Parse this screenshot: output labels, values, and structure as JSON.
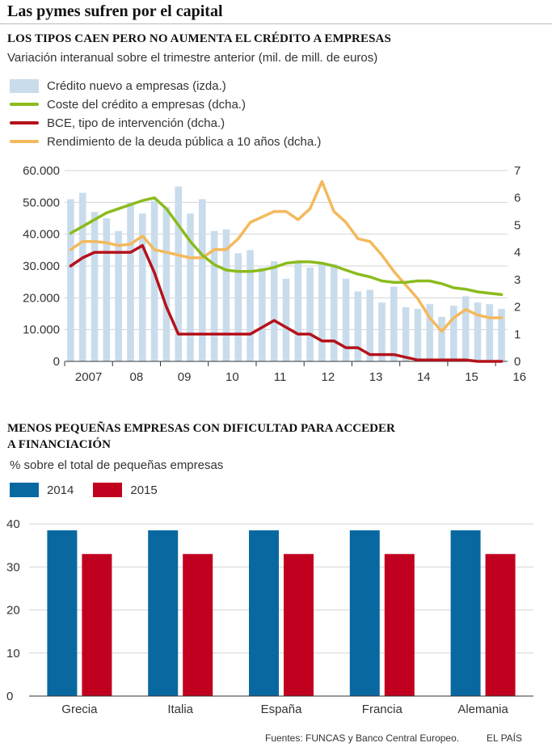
{
  "page_title": "Las pymes sufren por el capital",
  "colors": {
    "credit_bar": "#c9dcec",
    "cost_line": "#8cbb1d",
    "ecb_line": "#b5121b",
    "bond_line": "#f4b95d",
    "bar_2014": "#0a68a1",
    "bar_2015": "#c1001f",
    "grid": "#d3d3d3",
    "axis_text": "#333333"
  },
  "chart_data": [
    {
      "type": "bar+line",
      "title": "LOS TIPOS CAEN PERO NO AUMENTA EL CRÉDITO A EMPRESAS",
      "subtitle": "Variación interanual sobre el trimestre anterior (mil. de mill. de euros)",
      "legend": [
        {
          "key": "credit",
          "label": "Crédito nuevo a empresas (izda.)",
          "symbol": "bar"
        },
        {
          "key": "cost",
          "label": "Coste del crédito a empresas (dcha.)",
          "symbol": "line"
        },
        {
          "key": "ecb",
          "label": "BCE, tipo de intervención (dcha.)",
          "symbol": "line"
        },
        {
          "key": "bond",
          "label": "Rendimiento de la deuda pública a 10 años (dcha.)",
          "symbol": "line"
        }
      ],
      "x_labels": [
        "2007",
        "08",
        "09",
        "10",
        "11",
        "12",
        "13",
        "14",
        "15",
        "16"
      ],
      "x_start_year": 2007,
      "points_per_year": 4,
      "y_left": {
        "min": 0,
        "max": 60000,
        "ticks": [
          "0",
          "10.000",
          "20.000",
          "30.000",
          "40.000",
          "50.000",
          "60.000"
        ]
      },
      "y_right": {
        "min": 0,
        "max": 7,
        "ticks": [
          "0",
          "1",
          "2",
          "3",
          "4",
          "5",
          "6",
          "7"
        ]
      },
      "series": {
        "credit": [
          51000,
          53000,
          47000,
          45000,
          41000,
          50000,
          46500,
          50500,
          48500,
          55000,
          46500,
          51000,
          41000,
          41500,
          34000,
          35000,
          29500,
          31500,
          26000,
          31000,
          29500,
          30500,
          30500,
          26000,
          22000,
          22500,
          18500,
          23500,
          17000,
          16500,
          18000,
          14000,
          17500,
          20500,
          18500,
          18000,
          16500
        ],
        "cost": [
          4.7,
          4.95,
          5.2,
          5.45,
          5.6,
          5.75,
          5.9,
          6.0,
          5.6,
          5.0,
          4.4,
          3.9,
          3.55,
          3.35,
          3.3,
          3.3,
          3.35,
          3.45,
          3.6,
          3.65,
          3.65,
          3.6,
          3.5,
          3.35,
          3.2,
          3.1,
          2.95,
          2.9,
          2.9,
          2.95,
          2.95,
          2.85,
          2.7,
          2.65,
          2.55,
          2.5,
          2.45
        ],
        "ecb": [
          3.5,
          3.8,
          4.0,
          4.0,
          4.0,
          4.0,
          4.25,
          3.25,
          2.0,
          1.0,
          1.0,
          1.0,
          1.0,
          1.0,
          1.0,
          1.0,
          1.25,
          1.5,
          1.25,
          1.0,
          1.0,
          0.75,
          0.75,
          0.5,
          0.5,
          0.25,
          0.25,
          0.25,
          0.15,
          0.05,
          0.05,
          0.05,
          0.05,
          0.05,
          0.0,
          0.0,
          0.0
        ],
        "bond": [
          4.1,
          4.4,
          4.4,
          4.35,
          4.25,
          4.3,
          4.6,
          4.1,
          4.0,
          3.9,
          3.8,
          3.8,
          4.1,
          4.1,
          4.5,
          5.1,
          5.3,
          5.5,
          5.5,
          5.2,
          5.6,
          6.6,
          5.5,
          5.1,
          4.5,
          4.4,
          3.9,
          3.3,
          2.8,
          2.3,
          1.6,
          1.1,
          1.6,
          1.9,
          1.7,
          1.6,
          1.6
        ]
      }
    },
    {
      "type": "bar",
      "title_line1": "MENOS PEQUEÑAS EMPRESAS CON DIFICULTAD PARA ACCEDER",
      "title_line2": "A FINANCIACIÓN",
      "subtitle": "% sobre el total de pequeñas empresas",
      "categories": [
        "Grecia",
        "Italia",
        "España",
        "Francia",
        "Alemania"
      ],
      "series": [
        {
          "name": "2014",
          "values": [
            38.5,
            38.5,
            38.5,
            38.5,
            38.5
          ]
        },
        {
          "name": "2015",
          "values": [
            33,
            33,
            33,
            33,
            33
          ]
        }
      ],
      "ylim": [
        0,
        40
      ],
      "y_ticks": [
        "0",
        "10",
        "20",
        "30",
        "40"
      ]
    }
  ],
  "footer": {
    "sources": "Fuentes: FUNCAS y Banco Central Europeo.",
    "brand": "EL PAÍS"
  }
}
